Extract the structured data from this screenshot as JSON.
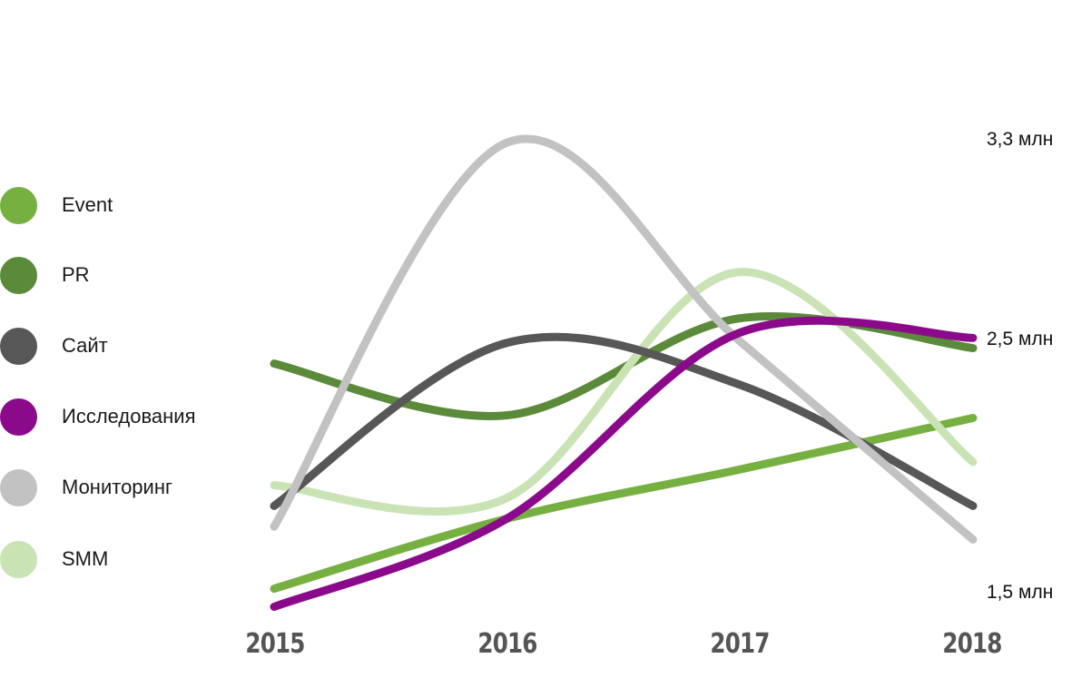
{
  "chart_data": {
    "type": "line",
    "title": "",
    "xlabel": "",
    "ylabel": "",
    "x": [
      "2015",
      "2016",
      "2017",
      "2018"
    ],
    "y_tick_labels": [
      "3,3 млн",
      "2,5 млн",
      "1,5 млн"
    ],
    "ylim": [
      1.5,
      3.3
    ],
    "grid": false,
    "legend_position": "left",
    "series": [
      {
        "name": "Event",
        "color": "#76b041",
        "values": [
          1.54,
          1.81,
          2.0,
          2.2
        ]
      },
      {
        "name": "PR",
        "color": "#5a8a3a",
        "values": [
          2.41,
          2.21,
          2.59,
          2.47
        ]
      },
      {
        "name": "Сайт",
        "color": "#575757",
        "values": [
          1.86,
          2.49,
          2.33,
          1.86
        ]
      },
      {
        "name": "Исследования",
        "color": "#8b0a8b",
        "values": [
          1.47,
          1.81,
          2.53,
          2.51
        ]
      },
      {
        "name": "Мониторинг",
        "color": "#c2c2c2",
        "values": [
          1.78,
          3.31,
          2.5,
          1.73
        ]
      },
      {
        "name": "SMM",
        "color": "#c9e3b5",
        "values": [
          1.94,
          1.89,
          2.78,
          2.03
        ]
      }
    ]
  }
}
